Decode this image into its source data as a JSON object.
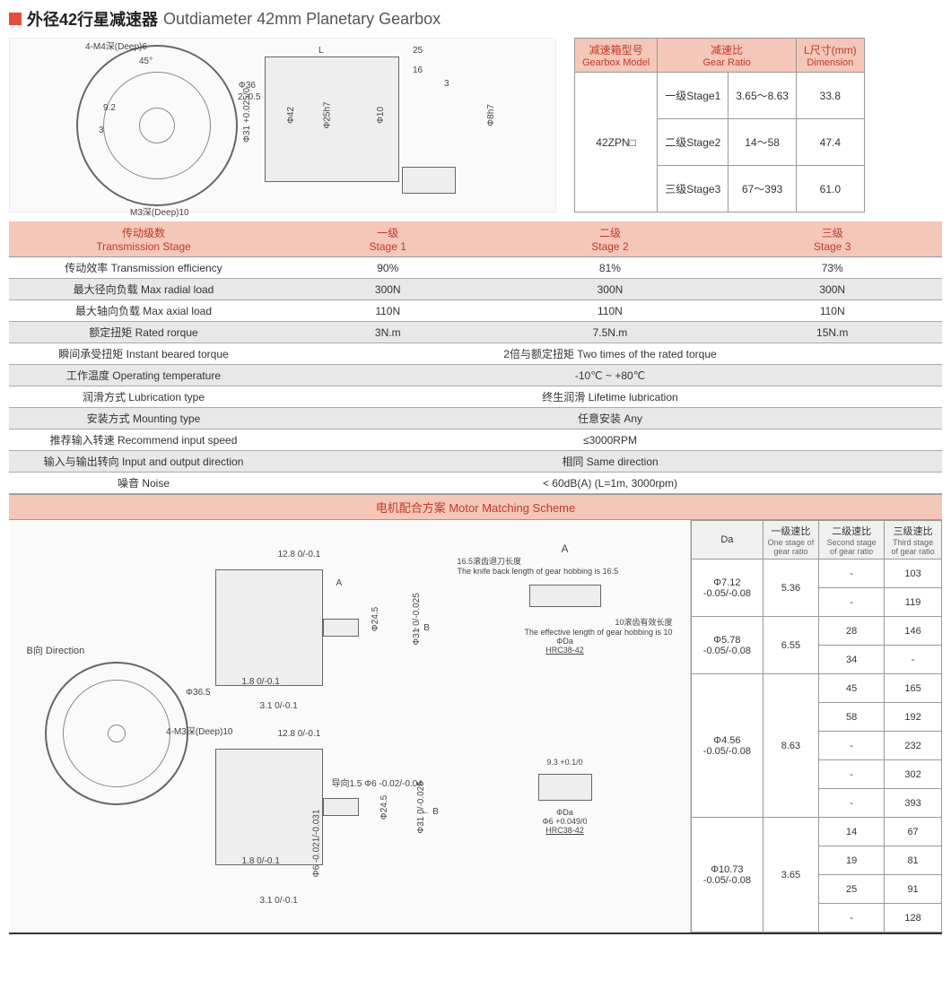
{
  "header": {
    "marker_color": "#e74c3c",
    "title_cn": "外径42行星减速器",
    "title_en": "Outdiameter 42mm Planetary Gearbox"
  },
  "top_diagram_labels": {
    "front_view": [
      "4-M4深(Deep)6",
      "45°",
      "Φ36",
      "9.2",
      "3",
      "M3深(Deep)10"
    ],
    "side_view": [
      "L",
      "25",
      "2 -0.5",
      "Φ31 +0.025/0",
      "Φ42",
      "Φ25h7",
      "Φ10",
      "16",
      "3",
      "Φ8h7"
    ]
  },
  "gearbox_table": {
    "headers": {
      "model_cn": "减速箱型号",
      "model_en": "Gearbox Model",
      "ratio_cn": "减速比",
      "ratio_en": "Gear Ratio",
      "dim_cn": "L尺寸(mm)",
      "dim_en": "Dimension"
    },
    "model": "42ZPN□",
    "rows": [
      {
        "stage": "一级Stage1",
        "ratio": "3.65～8.63",
        "dim": "33.8"
      },
      {
        "stage": "二级Stage2",
        "ratio": "14～58",
        "dim": "47.4"
      },
      {
        "stage": "三级Stage3",
        "ratio": "67～393",
        "dim": "61.0"
      }
    ]
  },
  "spec_table": {
    "headers": {
      "col0_cn": "传动级数",
      "col0_en": "Transmission Stage",
      "col1_cn": "一级",
      "col1_en": "Stage 1",
      "col2_cn": "二级",
      "col2_en": "Stage 2",
      "col3_cn": "三级",
      "col3_en": "Stage 3"
    },
    "rows": [
      {
        "label": "传动效率 Transmission efficiency",
        "v": [
          "90%",
          "81%",
          "73%"
        ]
      },
      {
        "label": "最大径向负载 Max radial load",
        "v": [
          "300N",
          "300N",
          "300N"
        ]
      },
      {
        "label": "最大轴向负载 Max axial load",
        "v": [
          "110N",
          "110N",
          "110N"
        ]
      },
      {
        "label": "额定扭矩 Rated rorque",
        "v": [
          "3N.m",
          "7.5N.m",
          "15N.m"
        ]
      },
      {
        "label": "瞬间承受扭矩 Instant beared torque",
        "merged": "2倍与额定扭矩 Two times of the rated torque"
      },
      {
        "label": "工作温度 Operating temperature",
        "merged": "-10℃ ~ +80℃"
      },
      {
        "label": "润滑方式 Lubrication type",
        "merged": "终生润滑 Lifetime lubrication"
      },
      {
        "label": "安装方式 Mounting type",
        "merged": "任意安装 Any"
      },
      {
        "label": "推荐输入转速 Recommend input speed",
        "merged": "≤3000RPM"
      },
      {
        "label": "输入与输出转向 Input and output direction",
        "merged": "相同 Same direction"
      },
      {
        "label": "噪音 Noise",
        "merged": "< 60dB(A) (L=1m, 3000rpm)"
      }
    ]
  },
  "motor_section_title": "电机配合方案 Motor Matching Scheme",
  "motor_diagram_labels": {
    "b_direction": "B向 Direction",
    "phi365": "Φ36.5",
    "m3deep": "4-M3深(Deep)10",
    "dims_upper": [
      "12.8 0/-0.1",
      "A",
      "Φ24.5",
      "Φ31 0/-0.025",
      "1.8 0/-0.1",
      "3.1 0/-0.1"
    ],
    "detail_a": [
      "A",
      "16.5滚齿退刀长度",
      "The knife back length of gear hobbing is 16.5",
      "10滚齿有效长度",
      "The effective length of gear hobbing is 10",
      "ΦDa",
      "HRC38-42",
      "← B"
    ],
    "dims_lower": [
      "12.8 0/-0.1",
      "导向1.5 Φ6 -0.02/-0.04",
      "Φ24.5",
      "Φ31 0/-0.025",
      "1.8 0/-0.1",
      "Φ6 -0.021/-0.031",
      "3.1 0/-0.1"
    ],
    "detail_b": [
      "9.3 +0.1/0",
      "ΦDa",
      "Φ6 +0.049/0",
      "HRC38-42",
      "← B"
    ]
  },
  "motor_table": {
    "headers": {
      "da": "Da",
      "s1_cn": "一级速比",
      "s1_en": "One stage of gear ratio",
      "s2_cn": "二级速比",
      "s2_en": "Second stage of gear ratio",
      "s3_cn": "三级速比",
      "s3_en": "Third stage of gear ratio"
    },
    "groups": [
      {
        "da": "Φ7.12 -0.05/-0.08",
        "s1": "5.36",
        "rows": [
          {
            "s2": "-",
            "s3": "103"
          },
          {
            "s2": "-",
            "s3": "119"
          }
        ]
      },
      {
        "da": "Φ5.78 -0.05/-0.08",
        "s1": "6.55",
        "rows": [
          {
            "s2": "28",
            "s3": "146"
          },
          {
            "s2": "34",
            "s3": "-"
          }
        ]
      },
      {
        "da": "Φ4.56 -0.05/-0.08",
        "s1": "8.63",
        "rows": [
          {
            "s2": "45",
            "s3": "165"
          },
          {
            "s2": "58",
            "s3": "192"
          },
          {
            "s2": "-",
            "s3": "232"
          },
          {
            "s2": "-",
            "s3": "302"
          },
          {
            "s2": "-",
            "s3": "393"
          }
        ]
      },
      {
        "da": "Φ10.73 -0.05/-0.08",
        "s1": "3.65",
        "rows": [
          {
            "s2": "14",
            "s3": "67"
          },
          {
            "s2": "19",
            "s3": "81"
          },
          {
            "s2": "25",
            "s3": "91"
          },
          {
            "s2": "-",
            "s3": "128"
          }
        ]
      }
    ]
  },
  "colors": {
    "header_bg": "#f4c7b8",
    "header_text": "#c0392b",
    "row_alt": "#e8e8e8",
    "border": "#999999"
  }
}
